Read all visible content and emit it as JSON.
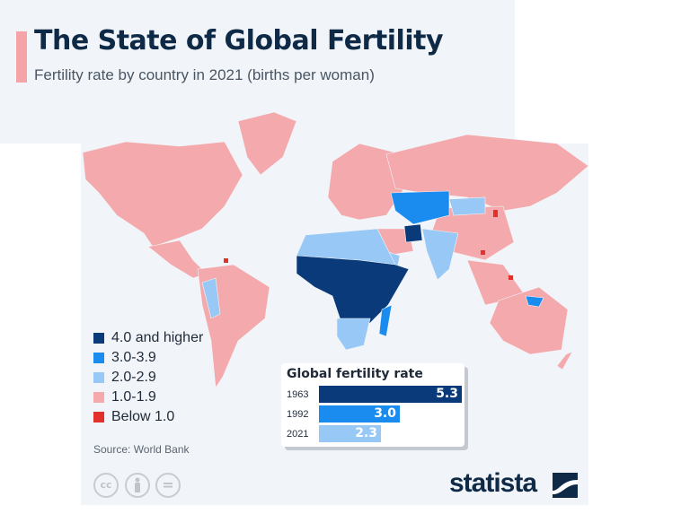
{
  "header": {
    "title": "The State of Global Fertility",
    "subtitle": "Fertility rate by country in 2021 (births per woman)"
  },
  "legend": {
    "items": [
      {
        "label": "4.0 and higher",
        "color": "#0b3a7a"
      },
      {
        "label": "3.0-3.9",
        "color": "#1a8cf0"
      },
      {
        "label": "2.0-2.9",
        "color": "#98c8f5"
      },
      {
        "label": "1.0-1.9",
        "color": "#f4a9ad"
      },
      {
        "label": "Below 1.0",
        "color": "#e2312b"
      }
    ]
  },
  "source": "Source: World Bank",
  "chart_data": [
    {
      "type": "map",
      "title": "The State of Global Fertility",
      "subtitle": "Fertility rate by country in 2021 (births per woman)",
      "legend": [
        "4.0 and higher",
        "3.0-3.9",
        "2.0-2.9",
        "1.0-1.9",
        "Below 1.0"
      ]
    },
    {
      "type": "bar",
      "title": "Global fertility rate",
      "categories": [
        "1963",
        "1992",
        "2021"
      ],
      "values": [
        5.3,
        3.0,
        2.3
      ],
      "colors": [
        "#0b3a7a",
        "#1a8cf0",
        "#98c8f5"
      ],
      "value_labels": [
        "5.3",
        "3.0",
        "2.3"
      ]
    }
  ],
  "footer": {
    "license_icons": [
      "cc",
      "by",
      "nd"
    ],
    "license_labels": [
      "cc",
      "",
      "="
    ],
    "brand": "statista"
  }
}
